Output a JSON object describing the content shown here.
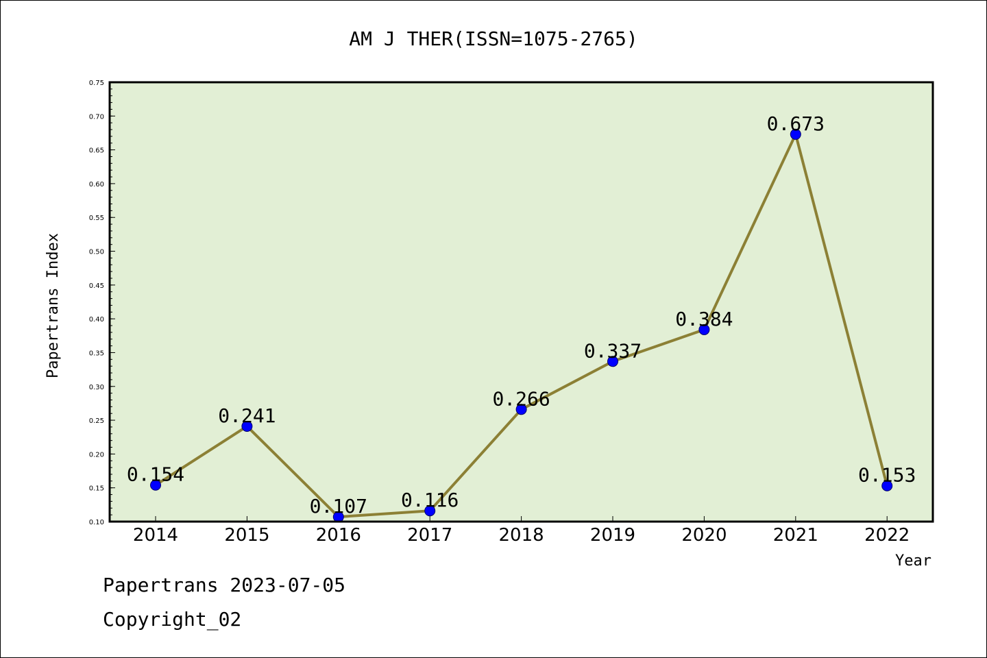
{
  "chart_data": {
    "type": "line",
    "title": "AM J THER(ISSN=1075-2765)",
    "xlabel": "Year",
    "ylabel": "Papertrans Index",
    "categories": [
      "2014",
      "2015",
      "2016",
      "2017",
      "2018",
      "2019",
      "2020",
      "2021",
      "2022"
    ],
    "values": [
      0.154,
      0.241,
      0.107,
      0.116,
      0.266,
      0.337,
      0.384,
      0.673,
      0.153
    ],
    "data_labels": [
      "0.154",
      "0.241",
      "0.107",
      "0.116",
      "0.266",
      "0.337",
      "0.384",
      "0.673",
      "0.153"
    ],
    "ylim": [
      0.1,
      0.75
    ],
    "yticks": [
      "0.10",
      "0.15",
      "0.20",
      "0.25",
      "0.30",
      "0.35",
      "0.40",
      "0.45",
      "0.50",
      "0.55",
      "0.60",
      "0.65",
      "0.70",
      "0.75"
    ],
    "grid": false,
    "colors": {
      "plot_background": "#e2efd5",
      "line": "#8c8035",
      "marker": "#0000ff"
    }
  },
  "footer": {
    "line1": "Papertrans 2023-07-05",
    "line2": "Copyright_02"
  }
}
